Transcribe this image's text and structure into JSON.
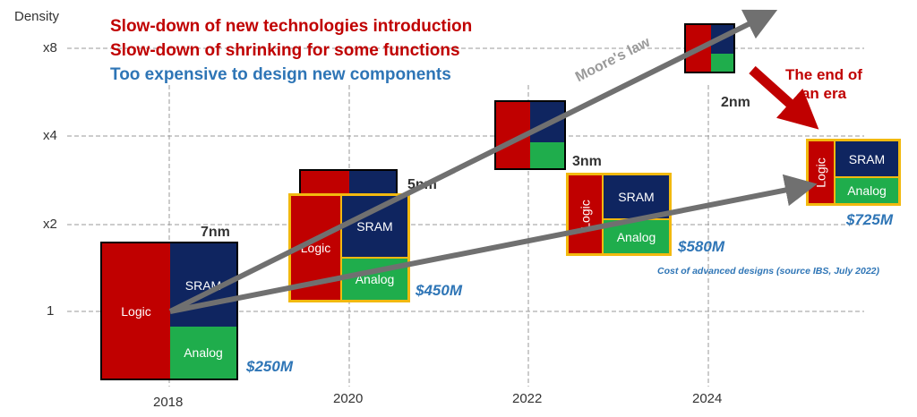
{
  "y_axis": {
    "title": "Density",
    "ticks": [
      "x8",
      "x4",
      "x2",
      "1"
    ]
  },
  "x_axis": {
    "years": [
      "2018",
      "2020",
      "2022",
      "2024"
    ]
  },
  "headlines": [
    {
      "text": "Slow-down of new technologies introduction",
      "color": "#c00000"
    },
    {
      "text": "Slow-down of shrinking for some functions",
      "color": "#c00000"
    },
    {
      "text": "Too expensive to design new components",
      "color": "#2e75b6"
    }
  ],
  "blocks": {
    "logic": "Logic",
    "sram": "SRAM",
    "analog": "Analog"
  },
  "nodes": {
    "n7": {
      "name": "7nm",
      "cost": "$250M"
    },
    "n5": {
      "name": "5nm",
      "cost": "$450M"
    },
    "n3": {
      "name": "3nm",
      "cost": "$580M"
    },
    "n2": {
      "name": "2nm",
      "cost": "$725M"
    }
  },
  "annotations": {
    "moores_law": "Moore's law",
    "end_of_era_line1": "The end of",
    "end_of_era_line2": "an era",
    "source": "Cost of advanced designs (source IBS, July 2022)"
  },
  "colors": {
    "logic": "#c00000",
    "sram": "#0f2560",
    "analog": "#1fad4c",
    "accent_blue": "#2e75b6",
    "outline_gold": "#f2b90f",
    "arrow_gray": "#707070"
  }
}
